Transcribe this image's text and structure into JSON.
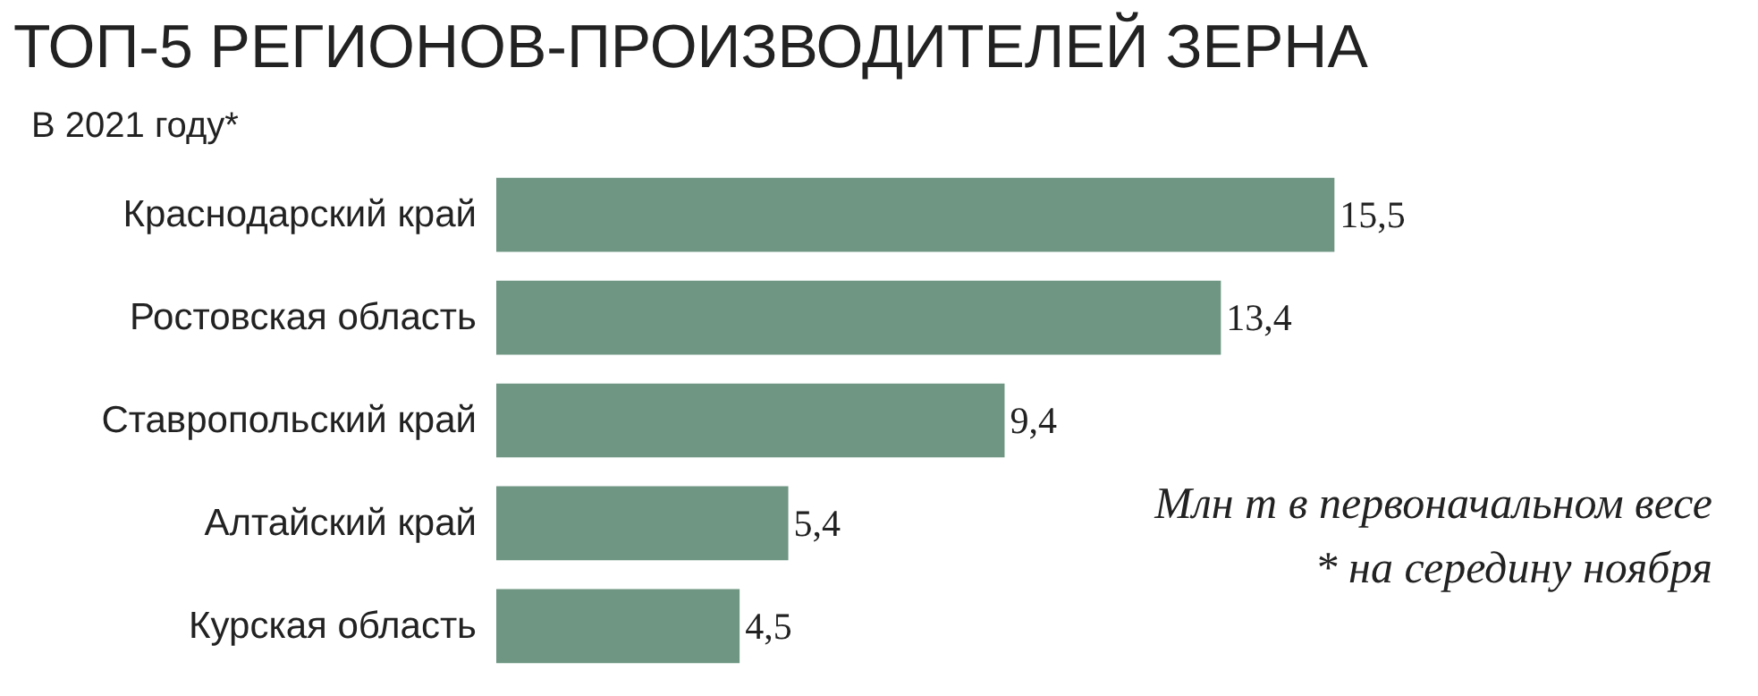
{
  "chart_data": {
    "type": "bar",
    "orientation": "horizontal",
    "title": "ТОП-5 РЕГИОНОВ-ПРОИЗВОДИТЕЛЕЙ ЗЕРНА",
    "subtitle": "В 2021 году*",
    "categories": [
      "Краснодарский край",
      "Ростовская область",
      "Ставропольский край",
      "Алтайский край",
      "Курская область"
    ],
    "values": [
      15.5,
      13.4,
      9.4,
      5.4,
      4.5
    ],
    "value_labels": [
      "15,5",
      "13,4",
      "9,4",
      "5,4",
      "4,5"
    ],
    "color": "#6e9682",
    "annotations": [
      "Млн т в первоначальном весе",
      "* на середину ноября"
    ],
    "grid": false
  }
}
